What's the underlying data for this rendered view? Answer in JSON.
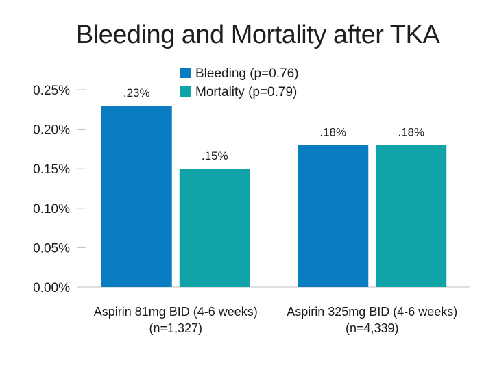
{
  "chart_data": {
    "type": "bar",
    "title": "Bleeding and Mortality after TKA",
    "xlabel": "",
    "ylabel": "",
    "categories": [
      [
        "Aspirin 81mg BID (4-6 weeks)",
        "(n=1,327)"
      ],
      [
        "Aspirin 325mg BID (4-6 weeks)",
        "(n=4,339)"
      ]
    ],
    "series": [
      {
        "name": "Bleeding (p=0.76)",
        "color": "#0a7cc1",
        "values": [
          0.23,
          0.18
        ],
        "labels": [
          ".23%",
          ".18%"
        ]
      },
      {
        "name": "Mortality (p=0.79)",
        "color": "#10a3a8",
        "values": [
          0.15,
          0.18
        ],
        "labels": [
          ".15%",
          ".18%"
        ]
      }
    ],
    "ylim": [
      0,
      0.25
    ],
    "yticks": [
      0,
      0.05,
      0.1,
      0.15,
      0.2,
      0.25
    ],
    "ytick_labels": [
      "0.00%",
      "0.05%",
      "0.10%",
      "0.15%",
      "0.20%",
      "0.25%"
    ],
    "grid": false,
    "legend_position": "top-center"
  }
}
